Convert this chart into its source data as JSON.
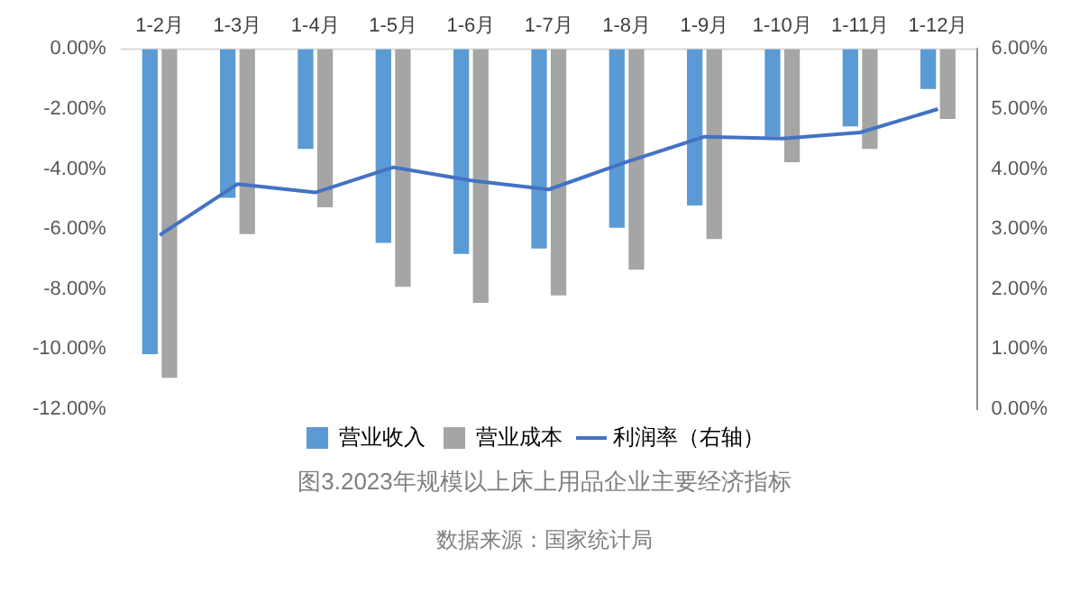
{
  "chart_data": {
    "type": "bar",
    "title": "图3.2023年规模以上床上用品企业主要经济指标",
    "annotations": [
      "数据来源：国家统计局"
    ],
    "categories": [
      "1-2月",
      "1-3月",
      "1-4月",
      "1-5月",
      "1-6月",
      "1-7月",
      "1-8月",
      "1-9月",
      "1-10月",
      "1-11月",
      "1-12月"
    ],
    "series": [
      {
        "name": "营业收入",
        "color": "#5b9bd5",
        "values": [
          -10.17,
          -4.96,
          -3.33,
          -6.46,
          -6.83,
          -6.65,
          -5.96,
          -5.21,
          -2.92,
          -2.58,
          -1.33
        ]
      },
      {
        "name": "营业成本",
        "color": "#a5a5a5",
        "values": [
          -10.96,
          -6.17,
          -5.27,
          -7.92,
          -8.46,
          -8.21,
          -7.35,
          -6.33,
          -3.77,
          -3.33,
          -2.33
        ]
      },
      {
        "name": "利润率（右轴）",
        "type": "line",
        "axis": "y2",
        "color": "#4472c4",
        "values": [
          2.9,
          3.75,
          3.61,
          4.03,
          3.81,
          3.66,
          4.12,
          4.54,
          4.51,
          4.61,
          5.0
        ]
      }
    ],
    "ylim": [
      -12,
      0
    ],
    "yticks": [
      {
        "value": 0,
        "label": "0.00%"
      },
      {
        "value": -2,
        "label": "-2.00%"
      },
      {
        "value": -4,
        "label": "-4.00%"
      },
      {
        "value": -6,
        "label": "-6.00%"
      },
      {
        "value": -8,
        "label": "-8.00%"
      },
      {
        "value": -10,
        "label": "-10.00%"
      },
      {
        "value": -12,
        "label": "-12.00%"
      }
    ],
    "y2lim": [
      0,
      6
    ],
    "y2ticks": [
      {
        "value": 0,
        "label": "0.00%"
      },
      {
        "value": 1,
        "label": "1.00%"
      },
      {
        "value": 2,
        "label": "2.00%"
      },
      {
        "value": 3,
        "label": "3.00%"
      },
      {
        "value": 4,
        "label": "4.00%"
      },
      {
        "value": 5,
        "label": "5.00%"
      },
      {
        "value": 6,
        "label": "6.00%"
      }
    ],
    "legend": "bottom",
    "grid": false,
    "marker": "none"
  }
}
